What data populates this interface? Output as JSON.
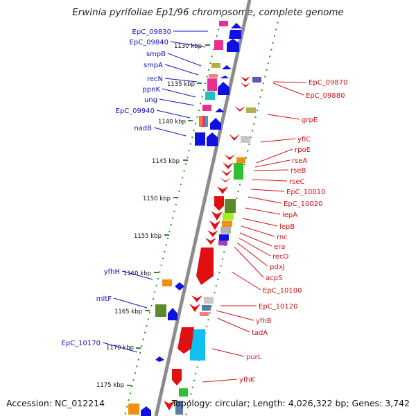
{
  "title": "Erwinia pyrifoliae Ep1/96 chromosome, complete genome",
  "footer": {
    "accession": "Accession: NC_012214",
    "summary": "Topology: circular; Length: 4,026,322 bp; Genes: 3,742"
  },
  "colors": {
    "backbone": "#8a8a8a",
    "forward_label": "#1010c8",
    "reverse_label": "#d01010",
    "dotted_track": "#2a8a2a"
  },
  "kbp_ticks": [
    "1130 kbp",
    "1135 kbp",
    "1140 kbp",
    "1145 kbp",
    "1150 kbp",
    "1155 kbp",
    "1160 kbp",
    "1165 kbp",
    "1170 kbp",
    "1175 kbp"
  ],
  "forward_genes": [
    {
      "label": "EpC_09830"
    },
    {
      "label": "EpC_09840"
    },
    {
      "label": "smpB"
    },
    {
      "label": "smpA"
    },
    {
      "label": "recN"
    },
    {
      "label": "ppnK"
    },
    {
      "label": "ung"
    },
    {
      "label": "EpC_09940"
    },
    {
      "label": "nadB"
    },
    {
      "label": "yfhH"
    },
    {
      "label": "mltF"
    },
    {
      "label": "EpC_10170"
    }
  ],
  "reverse_genes": [
    {
      "label": "EpC_09870"
    },
    {
      "label": "EpC_09880"
    },
    {
      "label": "grpE"
    },
    {
      "label": "yfiC"
    },
    {
      "label": "rpoE"
    },
    {
      "label": "rseA"
    },
    {
      "label": "rseB"
    },
    {
      "label": "rseC"
    },
    {
      "label": "EpC_10010"
    },
    {
      "label": "EpC_10020"
    },
    {
      "label": "lepA"
    },
    {
      "label": "lepB"
    },
    {
      "label": "rnc"
    },
    {
      "label": "era"
    },
    {
      "label": "recO"
    },
    {
      "label": "pdxJ"
    },
    {
      "label": "acpS"
    },
    {
      "label": "EpC_10100"
    },
    {
      "label": "EpC_10120"
    },
    {
      "label": "yfhB"
    },
    {
      "label": "tadA"
    },
    {
      "label": "purL"
    },
    {
      "label": "yfhK"
    }
  ]
}
